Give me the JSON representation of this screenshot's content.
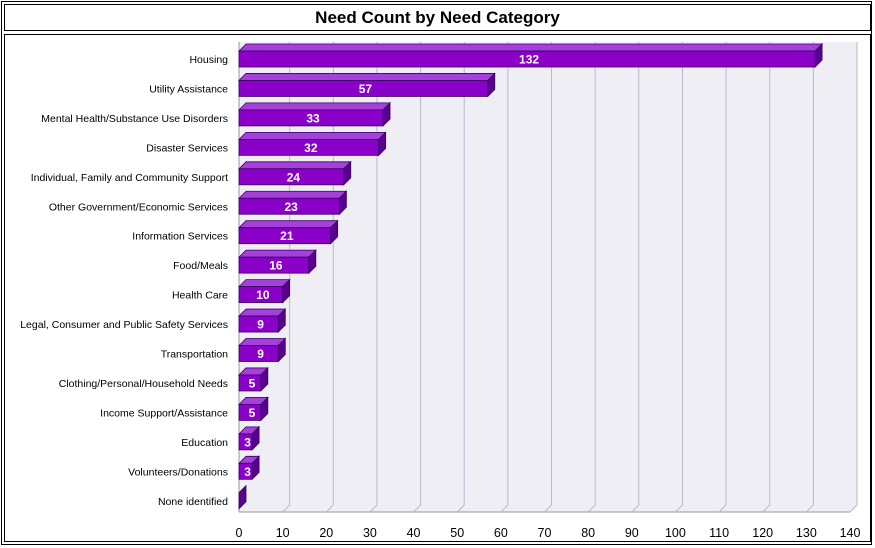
{
  "chart_data": {
    "type": "bar",
    "orientation": "horizontal",
    "title": "Need Count by Need Category",
    "categories": [
      "Housing",
      "Utility Assistance",
      "Mental Health/Substance Use Disorders",
      "Disaster Services",
      "Individual, Family and Community Support",
      "Other Government/Economic Services",
      "Information Services",
      "Food/Meals",
      "Health Care",
      "Legal, Consumer and Public Safety Services",
      "Transportation",
      "Clothing/Personal/Household Needs",
      "Income Support/Assistance",
      "Education",
      "Volunteers/Donations",
      "None identified"
    ],
    "values": [
      132,
      57,
      33,
      32,
      24,
      23,
      21,
      16,
      10,
      9,
      9,
      5,
      5,
      3,
      3,
      0
    ],
    "data_labels": [
      "132",
      "57",
      "33",
      "32",
      "24",
      "23",
      "21",
      "16",
      "10",
      "9",
      "9",
      "5",
      "5",
      "3",
      "3",
      ""
    ],
    "xlim": [
      0,
      140
    ],
    "xticks": [
      0,
      10,
      20,
      30,
      40,
      50,
      60,
      70,
      80,
      90,
      100,
      110,
      120,
      130,
      140
    ],
    "xlabel": "",
    "ylabel": "",
    "grid": true,
    "legend": "none",
    "colors": {
      "bar_front": "#8a00c8",
      "bar_top": "#a640dc",
      "bar_side": "#5a0090",
      "bar_edge": "#3a0060",
      "plot_background": "#efeef5",
      "gridline": "#b8b8cc"
    }
  }
}
